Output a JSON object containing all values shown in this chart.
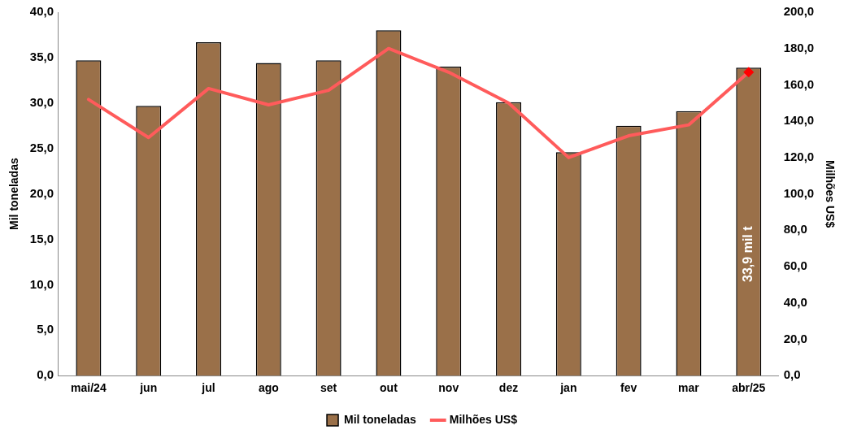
{
  "chart_data": {
    "type": "bar",
    "categories": [
      "mai/24",
      "jun",
      "jul",
      "ago",
      "set",
      "out",
      "nov",
      "dez",
      "jan",
      "fev",
      "mar",
      "abr/25"
    ],
    "series": [
      {
        "name": "Mil toneladas",
        "color": "#9a7049",
        "values": [
          34.7,
          29.7,
          36.7,
          34.4,
          34.7,
          38.0,
          34.0,
          30.1,
          24.6,
          27.5,
          29.1,
          33.9
        ],
        "value_labels": [
          null,
          null,
          null,
          null,
          null,
          null,
          null,
          null,
          null,
          null,
          null,
          "33,9 mil t"
        ]
      },
      {
        "name": "Milhões US$",
        "type": "line",
        "axis": "y2",
        "color": "#ff5b5b",
        "marker": "none",
        "values": [
          152,
          131,
          158,
          149,
          157,
          180,
          167,
          150,
          120,
          132,
          138,
          167
        ]
      },
      {
        "type": "scatter",
        "axis": "y2",
        "color": "#ff0000",
        "marker": "diamond",
        "x": [
          "abr/25"
        ],
        "values": [
          167
        ]
      }
    ],
    "ylabel": "Mil toneladas",
    "y2label": "Milhões US$",
    "ylim": [
      0,
      40
    ],
    "yticks": [
      {
        "value": 0,
        "label": "0,0"
      },
      {
        "value": 5,
        "label": "5,0"
      },
      {
        "value": 10,
        "label": "10,0"
      },
      {
        "value": 15,
        "label": "15,0"
      },
      {
        "value": 20,
        "label": "20,0"
      },
      {
        "value": 25,
        "label": "25,0"
      },
      {
        "value": 30,
        "label": "30,0"
      },
      {
        "value": 35,
        "label": "35,0"
      },
      {
        "value": 40,
        "label": "40,0"
      }
    ],
    "y2lim": [
      0,
      200
    ],
    "y2ticks": [
      {
        "value": 0,
        "label": "0,0"
      },
      {
        "value": 20,
        "label": "20,0"
      },
      {
        "value": 40,
        "label": "40,0"
      },
      {
        "value": 60,
        "label": "60,0"
      },
      {
        "value": 80,
        "label": "80,0"
      },
      {
        "value": 100,
        "label": "100,0"
      },
      {
        "value": 120,
        "label": "120,0"
      },
      {
        "value": 140,
        "label": "140,0"
      },
      {
        "value": 160,
        "label": "160,0"
      },
      {
        "value": 180,
        "label": "180,0"
      },
      {
        "value": 200,
        "label": "200,0"
      }
    ],
    "grid": false,
    "legend": "bottom"
  }
}
